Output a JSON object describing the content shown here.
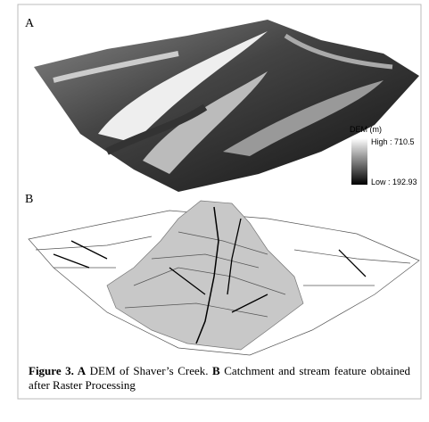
{
  "panels": [
    {
      "label": "A",
      "legend": {
        "title": "DEM (m)",
        "high": "High : 710.5",
        "low": "Low : 192.93"
      }
    },
    {
      "label": "B"
    }
  ],
  "caption": {
    "parts": [
      {
        "text": "Figure 3. A",
        "bold": true
      },
      {
        "text": " DEM of Shaver’s Creek. "
      },
      {
        "text": "B",
        "bold": true
      },
      {
        "text": " Catchment and stream feature obtained after Raster Processing"
      }
    ]
  }
}
